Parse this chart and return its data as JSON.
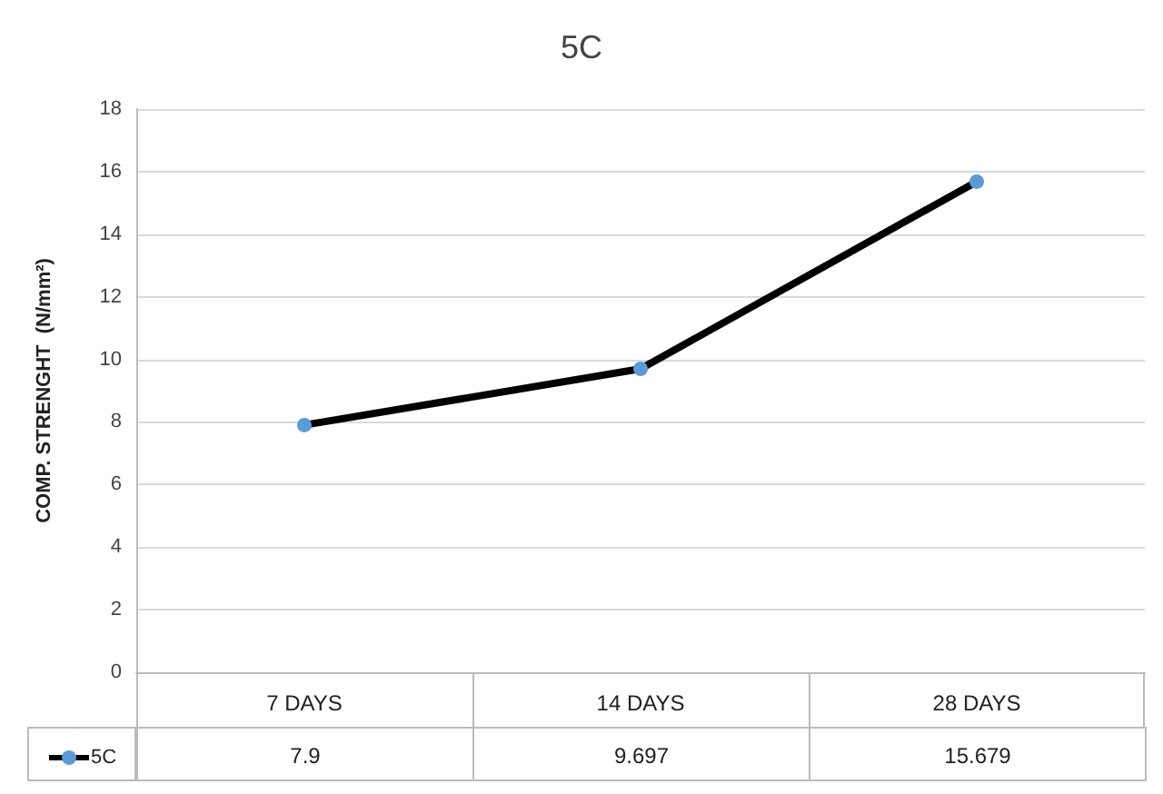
{
  "chart_data": {
    "type": "line",
    "title": "5C",
    "ylabel": "COMP. STRENGHT  (N/mm²)",
    "categories": [
      "7 DAYS",
      "14 DAYS",
      "28 DAYS"
    ],
    "series": [
      {
        "name": "5C",
        "color": "#000000",
        "values": [
          7.9,
          9.697,
          15.679
        ]
      }
    ],
    "ylim": [
      0,
      18
    ],
    "yticks": [
      0,
      2,
      4,
      6,
      8,
      10,
      12,
      14,
      16,
      18
    ],
    "grid": "y",
    "marker": "circle",
    "line_style": "solid",
    "data_labels": true,
    "legend": "bottom"
  }
}
